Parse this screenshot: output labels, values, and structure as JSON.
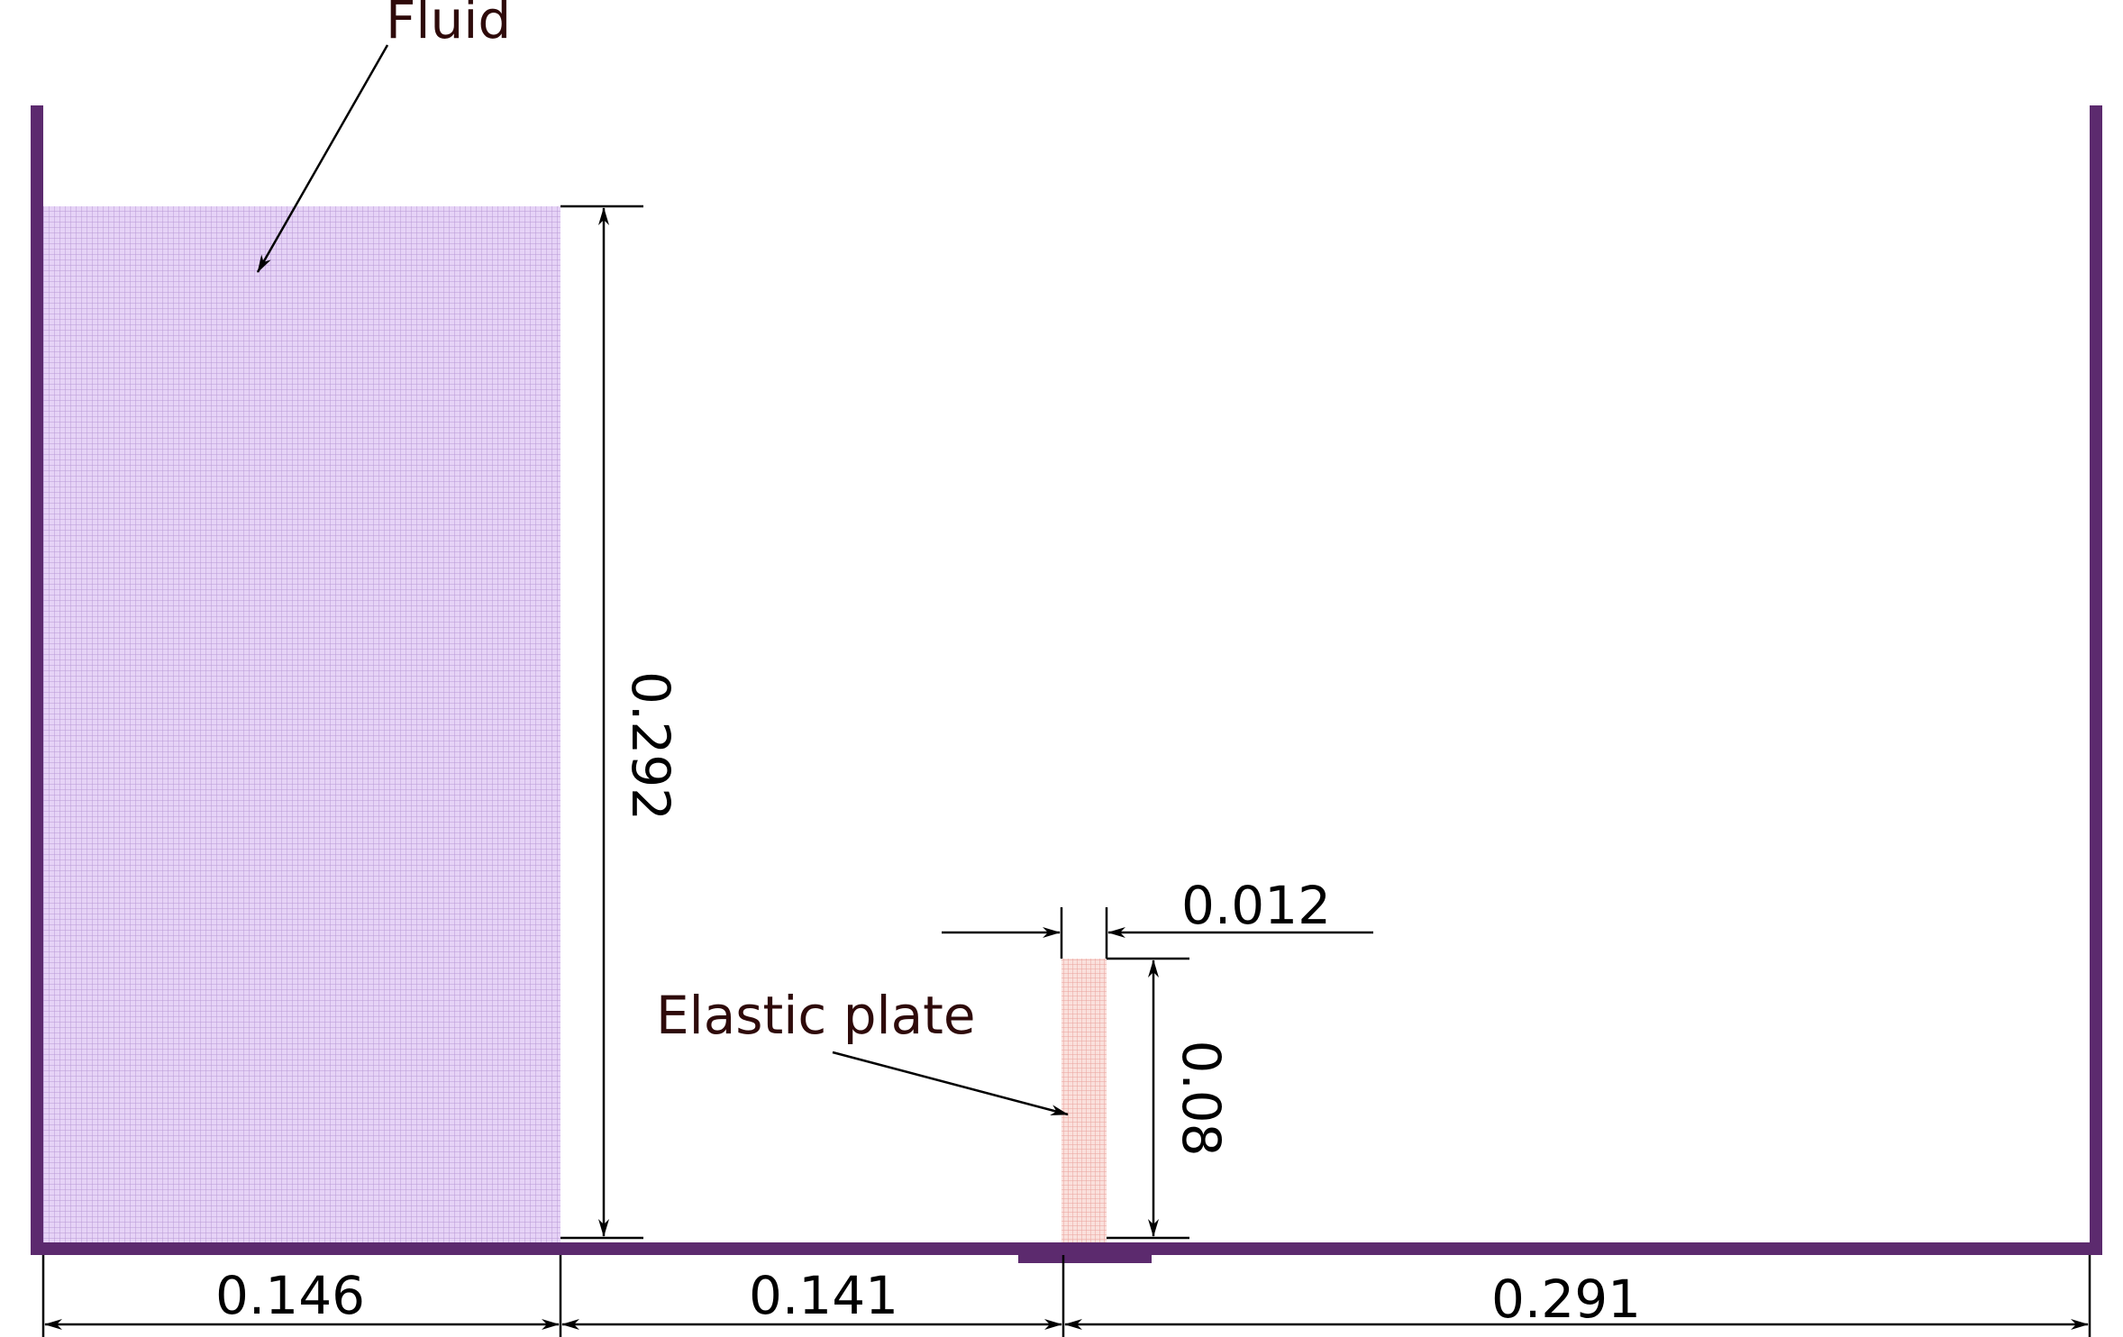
{
  "labels": {
    "fluid": "Fluid",
    "elastic_plate": "Elastic plate"
  },
  "dimensions": {
    "fluid_height": "0.292",
    "plate_thickness": "0.012",
    "plate_height": "0.08",
    "fluid_width": "0.146",
    "gap_to_plate": "0.141",
    "plate_to_right_wall": "0.291"
  },
  "colors": {
    "wall": "#5c2a6e",
    "fluid_fill": "#e4cff5",
    "fluid_grid": "#b99ad6",
    "plate_fill": "#f8d7d2",
    "plate_grid": "#e79a95",
    "label_text": "#2e0a0a",
    "dimension_text": "#000000"
  }
}
